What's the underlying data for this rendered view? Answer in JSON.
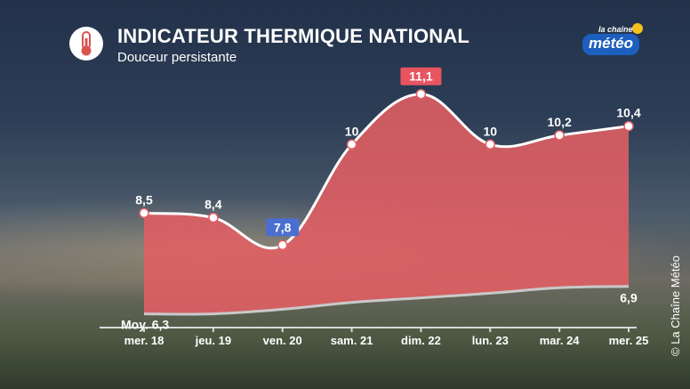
{
  "header": {
    "title": "INDICATEUR THERMIQUE NATIONAL",
    "subtitle": "Douceur persistante",
    "icon": "thermometer-icon"
  },
  "logo": {
    "top": "la chaîne",
    "main": "météo"
  },
  "credit": "© La Chaîne Météo",
  "colors": {
    "area": "#e35f63",
    "line": "#ffffff",
    "avg_line": "#c9c9c9",
    "max_badge": "#e85560",
    "min_badge": "#4a6fd0"
  },
  "chart_data": {
    "type": "area",
    "categories": [
      "mer. 18",
      "jeu. 19",
      "ven. 20",
      "sam. 21",
      "dim. 22",
      "lun. 23",
      "mar. 24",
      "mer. 25"
    ],
    "values": [
      8.5,
      8.4,
      7.8,
      10,
      11.1,
      10,
      10.2,
      10.4
    ],
    "value_labels": [
      "8,5",
      "8,4",
      "7,8",
      "10",
      "11,1",
      "10",
      "10,2",
      "10,4"
    ],
    "highlight_max_index": 4,
    "highlight_min_index": 2,
    "average": {
      "start_label": "Moy. 6,3",
      "end_label": "6,9",
      "values": [
        6.3,
        6.3,
        6.4,
        6.55,
        6.65,
        6.75,
        6.87,
        6.9
      ]
    },
    "ylim": [
      6.0,
      11.6
    ],
    "grid": false
  }
}
